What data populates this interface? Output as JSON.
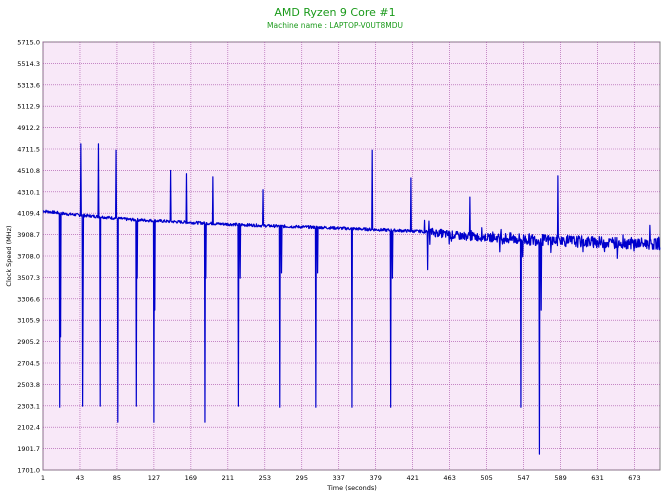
{
  "chart_data": {
    "type": "line",
    "title": "AMD Ryzen 9 Core #1",
    "subtitle": "Machine name : LAPTOP-V0UT8MDU",
    "xlabel": "Time (seconds)",
    "ylabel": "Clock Speed (MHz)",
    "xlim": [
      1,
      702
    ],
    "ylim": [
      1701.0,
      5715.0
    ],
    "x_ticks": [
      "1",
      "43",
      "85",
      "127",
      "169",
      "211",
      "253",
      "295",
      "337",
      "379",
      "421",
      "463",
      "505",
      "547",
      "589",
      "631",
      "673"
    ],
    "y_ticks": [
      "5715.0",
      "5514.3",
      "5313.6",
      "5112.9",
      "4912.2",
      "4711.5",
      "4510.8",
      "4310.1",
      "4109.4",
      "3908.7",
      "3708.0",
      "3507.3",
      "3306.6",
      "3105.9",
      "2905.2",
      "2704.5",
      "2503.8",
      "2303.1",
      "2102.4",
      "1901.7",
      "1701.0"
    ],
    "grid": true,
    "series": [
      {
        "color": "#0000cc",
        "baseline": [
          [
            1,
            4130
          ],
          [
            30,
            4100
          ],
          [
            60,
            4080
          ],
          [
            100,
            4050
          ],
          [
            150,
            4030
          ],
          [
            200,
            4010
          ],
          [
            260,
            3990
          ],
          [
            320,
            3975
          ],
          [
            380,
            3955
          ],
          [
            440,
            3935
          ],
          [
            470,
            3900
          ],
          [
            510,
            3880
          ],
          [
            560,
            3860
          ],
          [
            620,
            3840
          ],
          [
            702,
            3820
          ]
        ],
        "spikes": [
          [
            20,
            2290
          ],
          [
            21,
            2950
          ],
          [
            44,
            4760
          ],
          [
            46,
            2300
          ],
          [
            46.5,
            3200
          ],
          [
            64,
            4760
          ],
          [
            66,
            2300
          ],
          [
            84,
            4700
          ],
          [
            86,
            2150
          ],
          [
            107,
            2300
          ],
          [
            108,
            3500
          ],
          [
            127,
            2150
          ],
          [
            128,
            3200
          ],
          [
            146,
            4510
          ],
          [
            164,
            4480
          ],
          [
            185,
            2150
          ],
          [
            186,
            3500
          ],
          [
            194,
            4450
          ],
          [
            223,
            2300
          ],
          [
            225,
            3500
          ],
          [
            251,
            4330
          ],
          [
            270,
            2290
          ],
          [
            272,
            3550
          ],
          [
            311,
            2290
          ],
          [
            313,
            3550
          ],
          [
            352,
            2290
          ],
          [
            375,
            4700
          ],
          [
            396,
            2290
          ],
          [
            398,
            3500
          ],
          [
            419,
            4440
          ],
          [
            438,
            3580
          ],
          [
            486,
            4260
          ],
          [
            544,
            2290
          ],
          [
            546,
            3700
          ],
          [
            565,
            1850
          ],
          [
            567,
            3200
          ],
          [
            586,
            4460
          ]
        ]
      }
    ]
  }
}
